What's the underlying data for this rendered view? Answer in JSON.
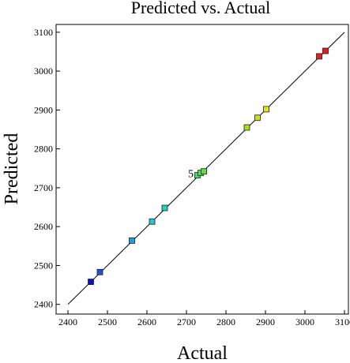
{
  "chart_data": {
    "type": "scatter",
    "title": "Predicted vs. Actual",
    "xlabel": "Actual",
    "ylabel": "Predicted",
    "xlim": [
      2370,
      3110
    ],
    "ylim": [
      2375,
      3120
    ],
    "x_ticks": [
      2400,
      2500,
      2600,
      2700,
      2800,
      2900,
      3000,
      3100
    ],
    "y_ticks": [
      2400,
      2500,
      2600,
      2700,
      2800,
      2900,
      3000,
      3100
    ],
    "reference_line": {
      "from": [
        2400,
        2400
      ],
      "to": [
        3100,
        3100
      ]
    },
    "annotation": {
      "text": "5",
      "x": 2722,
      "y": 2737
    },
    "points": [
      {
        "x": 2458,
        "y": 2458,
        "color": "#1010c8"
      },
      {
        "x": 2481,
        "y": 2483,
        "color": "#2050e0"
      },
      {
        "x": 2562,
        "y": 2564,
        "color": "#20a0e0"
      },
      {
        "x": 2613,
        "y": 2613,
        "color": "#20c8d8"
      },
      {
        "x": 2645,
        "y": 2648,
        "color": "#20d8b8"
      },
      {
        "x": 2728,
        "y": 2732,
        "color": "#40e060"
      },
      {
        "x": 2736,
        "y": 2738,
        "color": "#50e050"
      },
      {
        "x": 2744,
        "y": 2742,
        "color": "#60e040"
      },
      {
        "x": 2853,
        "y": 2855,
        "color": "#a0e020"
      },
      {
        "x": 2880,
        "y": 2880,
        "color": "#c8e020"
      },
      {
        "x": 2902,
        "y": 2902,
        "color": "#e8e020"
      },
      {
        "x": 3036,
        "y": 3038,
        "color": "#e82020"
      },
      {
        "x": 3052,
        "y": 3052,
        "color": "#e81818"
      }
    ]
  }
}
